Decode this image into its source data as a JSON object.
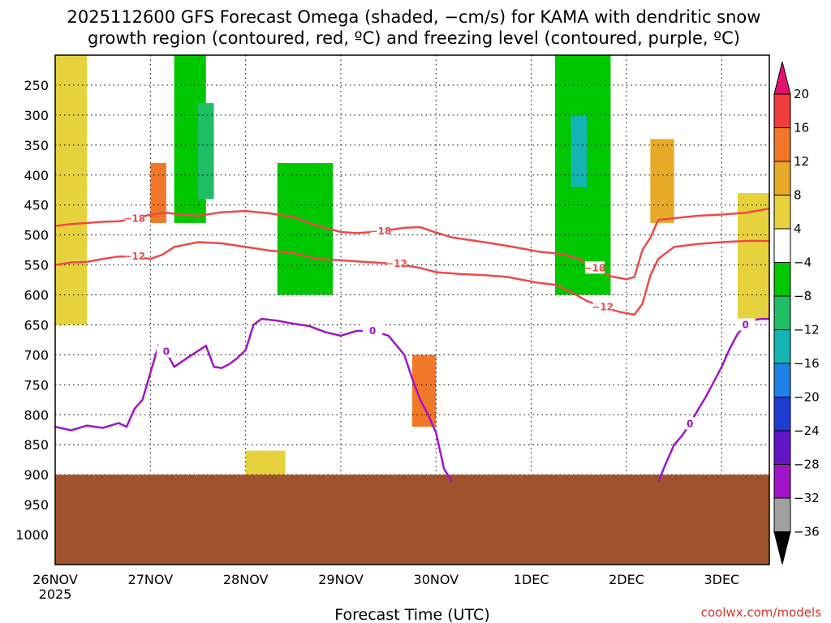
{
  "chart_data": {
    "type": "heatmap",
    "title_line1": "2025112600 GFS Forecast Omega (shaded, −cm/s) for KAMA with dendritic snow",
    "title_line2": "growth region (contoured, red, ºC) and freezing level (contoured, purple, ºC)",
    "xlabel": "Forecast Time (UTC)",
    "credit": "coolwx.com/models",
    "x_axis": {
      "unit": "hours since 2025-11-26 00Z",
      "range": [
        0,
        180
      ],
      "ticks": [
        {
          "hour": 0,
          "label": "26NOV",
          "sublabel": "2025"
        },
        {
          "hour": 24,
          "label": "27NOV"
        },
        {
          "hour": 48,
          "label": "28NOV"
        },
        {
          "hour": 72,
          "label": "29NOV"
        },
        {
          "hour": 96,
          "label": "30NOV"
        },
        {
          "hour": 120,
          "label": "1DEC"
        },
        {
          "hour": 144,
          "label": "2DEC"
        },
        {
          "hour": 168,
          "label": "3DEC"
        }
      ]
    },
    "y_axis": {
      "unit": "hPa",
      "range": [
        1050,
        200
      ],
      "ticks": [
        250,
        300,
        350,
        400,
        450,
        500,
        550,
        600,
        650,
        700,
        750,
        800,
        850,
        900,
        950,
        1000
      ]
    },
    "colorbar": {
      "labels": [
        "20",
        "16",
        "12",
        "8",
        "4",
        "−4",
        "−8",
        "−12",
        "−16",
        "−20",
        "−24",
        "−28",
        "−32",
        "−36"
      ],
      "colors": {
        "gt20": "#e0146e",
        "c16_20": "#f03c3c",
        "c12_16": "#f07828",
        "c8_12": "#e6aa28",
        "c4_8": "#e6d23c",
        "m4_4": "#ffffff",
        "m8_m4": "#00c800",
        "m12_m8": "#1ebe64",
        "m16_m12": "#14b4b4",
        "m20_m16": "#1e82e6",
        "m24_m20": "#1e3cd2",
        "m28_m24": "#6414c8",
        "m32_m28": "#a014c8",
        "m36_m32": "#a0a0a0",
        "lt36": "#000000"
      }
    },
    "ground_color": "#a0522d",
    "ground_top_hpa": 900,
    "contours": [
      {
        "name": "dgz-minus18",
        "label": "−18",
        "color": "#f04848",
        "points": [
          [
            0,
            485
          ],
          [
            4,
            482
          ],
          [
            8,
            480
          ],
          [
            12,
            478
          ],
          [
            16,
            477
          ],
          [
            20,
            473
          ],
          [
            24,
            466
          ],
          [
            28,
            463
          ],
          [
            32,
            466
          ],
          [
            36,
            468
          ],
          [
            42,
            462
          ],
          [
            48,
            460
          ],
          [
            54,
            464
          ],
          [
            60,
            470
          ],
          [
            64,
            480
          ],
          [
            68,
            488
          ],
          [
            72,
            495
          ],
          [
            76,
            497
          ],
          [
            82,
            494
          ],
          [
            88,
            488
          ],
          [
            92,
            487
          ],
          [
            96,
            496
          ],
          [
            100,
            504
          ],
          [
            106,
            510
          ],
          [
            112,
            516
          ],
          [
            118,
            523
          ],
          [
            122,
            528
          ],
          [
            128,
            532
          ],
          [
            132,
            540
          ],
          [
            136,
            555
          ],
          [
            140,
            569
          ],
          [
            144,
            574
          ],
          [
            146,
            570
          ],
          [
            148,
            525
          ],
          [
            150,
            505
          ],
          [
            152,
            475
          ],
          [
            156,
            472
          ],
          [
            162,
            468
          ],
          [
            168,
            466
          ],
          [
            174,
            463
          ],
          [
            180,
            456
          ]
        ]
      },
      {
        "name": "dgz-minus12",
        "label": "−12",
        "color": "#f04848",
        "points": [
          [
            0,
            550
          ],
          [
            4,
            546
          ],
          [
            8,
            545
          ],
          [
            12,
            540
          ],
          [
            16,
            536
          ],
          [
            20,
            536
          ],
          [
            24,
            540
          ],
          [
            27,
            533
          ],
          [
            30,
            520
          ],
          [
            36,
            512
          ],
          [
            42,
            514
          ],
          [
            48,
            520
          ],
          [
            54,
            526
          ],
          [
            60,
            530
          ],
          [
            66,
            540
          ],
          [
            72,
            542
          ],
          [
            78,
            545
          ],
          [
            86,
            548
          ],
          [
            92,
            555
          ],
          [
            96,
            562
          ],
          [
            102,
            565
          ],
          [
            108,
            567
          ],
          [
            114,
            570
          ],
          [
            118,
            575
          ],
          [
            122,
            580
          ],
          [
            126,
            583
          ],
          [
            130,
            595
          ],
          [
            134,
            610
          ],
          [
            138,
            620
          ],
          [
            142,
            628
          ],
          [
            146,
            633
          ],
          [
            148,
            615
          ],
          [
            150,
            568
          ],
          [
            152,
            540
          ],
          [
            156,
            520
          ],
          [
            162,
            515
          ],
          [
            168,
            512
          ],
          [
            174,
            510
          ],
          [
            180,
            510
          ]
        ]
      },
      {
        "name": "freezing-level-0",
        "label": "0",
        "color": "#a014c8",
        "points": [
          [
            0,
            820
          ],
          [
            4,
            826
          ],
          [
            8,
            818
          ],
          [
            12,
            822
          ],
          [
            16,
            814
          ],
          [
            18,
            820
          ],
          [
            20,
            790
          ],
          [
            22,
            775
          ],
          [
            24,
            730
          ],
          [
            26,
            685
          ],
          [
            28,
            695
          ],
          [
            30,
            720
          ],
          [
            34,
            702
          ],
          [
            38,
            685
          ],
          [
            40,
            720
          ],
          [
            42,
            722
          ],
          [
            44,
            715
          ],
          [
            46,
            705
          ],
          [
            48,
            692
          ],
          [
            50,
            650
          ],
          [
            52,
            640
          ],
          [
            56,
            643
          ],
          [
            60,
            648
          ],
          [
            64,
            652
          ],
          [
            68,
            662
          ],
          [
            72,
            668
          ],
          [
            76,
            660
          ],
          [
            80,
            660
          ],
          [
            84,
            668
          ],
          [
            88,
            700
          ],
          [
            90,
            740
          ],
          [
            92,
            775
          ],
          [
            94,
            800
          ],
          [
            96,
            830
          ],
          [
            98,
            890
          ],
          [
            100,
            912
          ]
        ]
      },
      {
        "name": "freezing-level-0-east",
        "label": "0",
        "color": "#a014c8",
        "points": [
          [
            152,
            912
          ],
          [
            154,
            880
          ],
          [
            156,
            850
          ],
          [
            158,
            835
          ],
          [
            160,
            815
          ],
          [
            162,
            792
          ],
          [
            164,
            770
          ],
          [
            166,
            745
          ],
          [
            168,
            720
          ],
          [
            170,
            690
          ],
          [
            172,
            665
          ],
          [
            174,
            650
          ],
          [
            176,
            642
          ],
          [
            178,
            640
          ],
          [
            180,
            640
          ]
        ]
      }
    ],
    "omega_regions_approx": [
      {
        "band": "c4_8",
        "hours": [
          0,
          8
        ],
        "hpa": [
          200,
          650
        ]
      },
      {
        "band": "c12_16",
        "hours": [
          24,
          28
        ],
        "hpa": [
          380,
          480
        ]
      },
      {
        "band": "m8_m4",
        "hours": [
          30,
          38
        ],
        "hpa": [
          200,
          480
        ]
      },
      {
        "band": "m12_m8",
        "hours": [
          36,
          40
        ],
        "hpa": [
          280,
          440
        ]
      },
      {
        "band": "c4_8",
        "hours": [
          48,
          58
        ],
        "hpa": [
          860,
          900
        ]
      },
      {
        "band": "m8_m4",
        "hours": [
          56,
          70
        ],
        "hpa": [
          380,
          600
        ]
      },
      {
        "band": "c12_16",
        "hours": [
          90,
          96
        ],
        "hpa": [
          700,
          820
        ]
      },
      {
        "band": "m8_m4",
        "hours": [
          126,
          140
        ],
        "hpa": [
          200,
          600
        ]
      },
      {
        "band": "m16_m12",
        "hours": [
          130,
          134
        ],
        "hpa": [
          300,
          420
        ]
      },
      {
        "band": "c8_12",
        "hours": [
          150,
          156
        ],
        "hpa": [
          340,
          480
        ]
      },
      {
        "band": "c4_8",
        "hours": [
          172,
          180
        ],
        "hpa": [
          430,
          640
        ]
      }
    ]
  }
}
